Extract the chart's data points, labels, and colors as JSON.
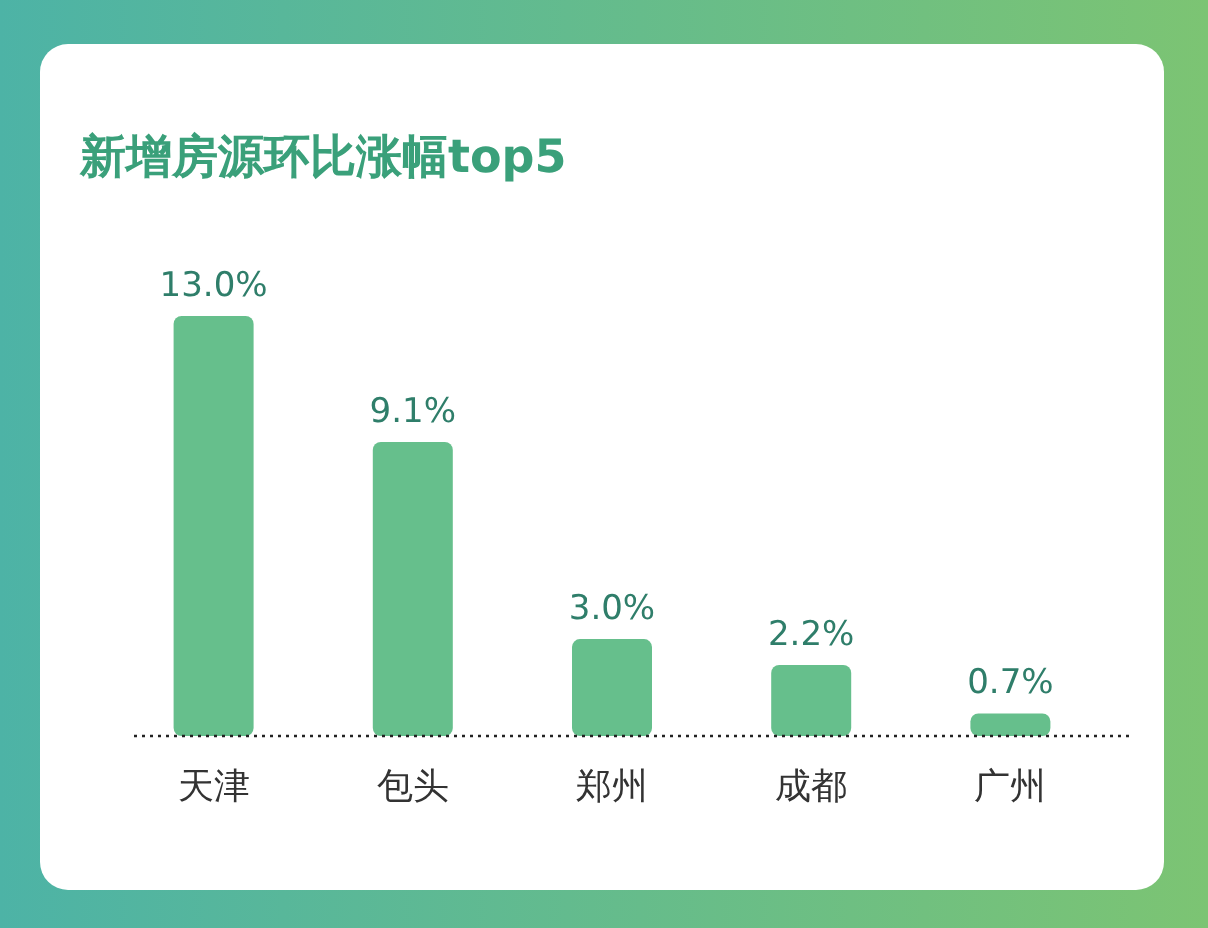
{
  "chart_data": {
    "type": "bar",
    "title": "新增房源环比涨幅top5",
    "categories": [
      "天津",
      "包头",
      "郑州",
      "成都",
      "广州"
    ],
    "values": [
      13.0,
      9.1,
      3.0,
      2.2,
      0.7
    ],
    "value_labels": [
      "13.0%",
      "9.1%",
      "3.0%",
      "2.2%",
      "0.7%"
    ],
    "color": "#66bf8c"
  }
}
